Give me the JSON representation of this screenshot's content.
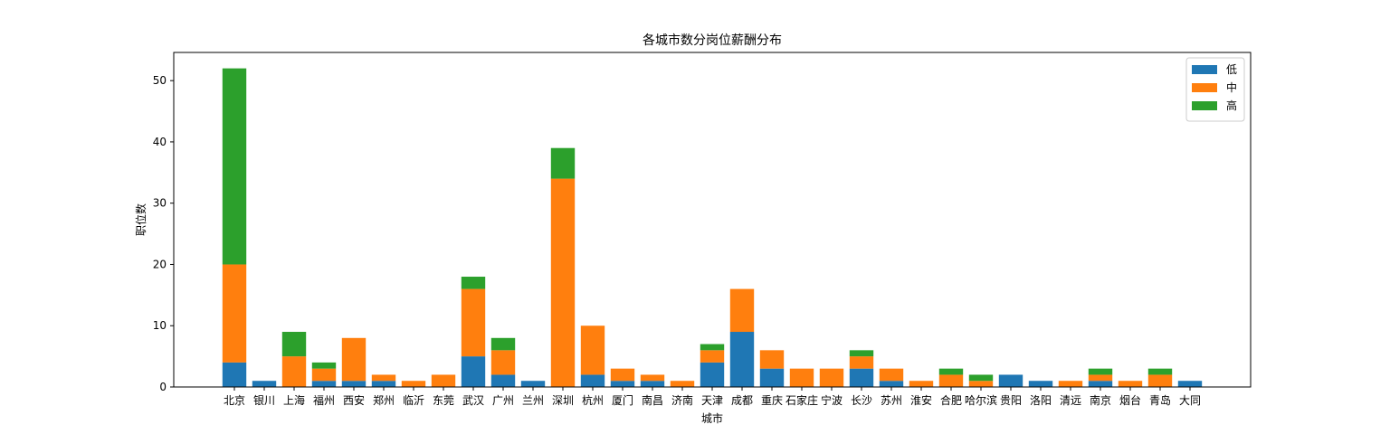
{
  "chart_data": {
    "type": "bar",
    "stacked": true,
    "title": "各城市数分岗位薪酬分布",
    "xlabel": "城市",
    "ylabel": "职位数",
    "ylim": [
      0,
      54.6
    ],
    "yticks": [
      0,
      10,
      20,
      30,
      40,
      50
    ],
    "legend_position": "top-right",
    "categories": [
      "北京",
      "银川",
      "上海",
      "福州",
      "西安",
      "郑州",
      "临沂",
      "东莞",
      "武汉",
      "广州",
      "兰州",
      "深圳",
      "杭州",
      "厦门",
      "南昌",
      "济南",
      "天津",
      "成都",
      "重庆",
      "石家庄",
      "宁波",
      "长沙",
      "苏州",
      "淮安",
      "合肥",
      "哈尔滨",
      "贵阳",
      "洛阳",
      "清远",
      "南京",
      "烟台",
      "青岛",
      "大同"
    ],
    "series": [
      {
        "name": "低",
        "color": "#1f77b4",
        "values": [
          4,
          1,
          0,
          1,
          1,
          1,
          0,
          0,
          5,
          2,
          1,
          0,
          2,
          1,
          1,
          0,
          4,
          9,
          3,
          0,
          0,
          3,
          1,
          0,
          0,
          0,
          2,
          1,
          0,
          1,
          0,
          0,
          1
        ]
      },
      {
        "name": "中",
        "color": "#ff7f0e",
        "values": [
          16,
          0,
          5,
          2,
          7,
          1,
          1,
          2,
          11,
          4,
          0,
          34,
          8,
          2,
          1,
          1,
          2,
          7,
          3,
          3,
          3,
          2,
          2,
          1,
          2,
          1,
          0,
          0,
          1,
          1,
          1,
          2,
          0
        ]
      },
      {
        "name": "高",
        "color": "#2ca02c",
        "values": [
          32,
          0,
          4,
          1,
          0,
          0,
          0,
          0,
          2,
          2,
          0,
          5,
          0,
          0,
          0,
          0,
          1,
          0,
          0,
          0,
          0,
          1,
          0,
          0,
          1,
          1,
          0,
          0,
          0,
          1,
          0,
          1,
          0
        ]
      }
    ]
  }
}
